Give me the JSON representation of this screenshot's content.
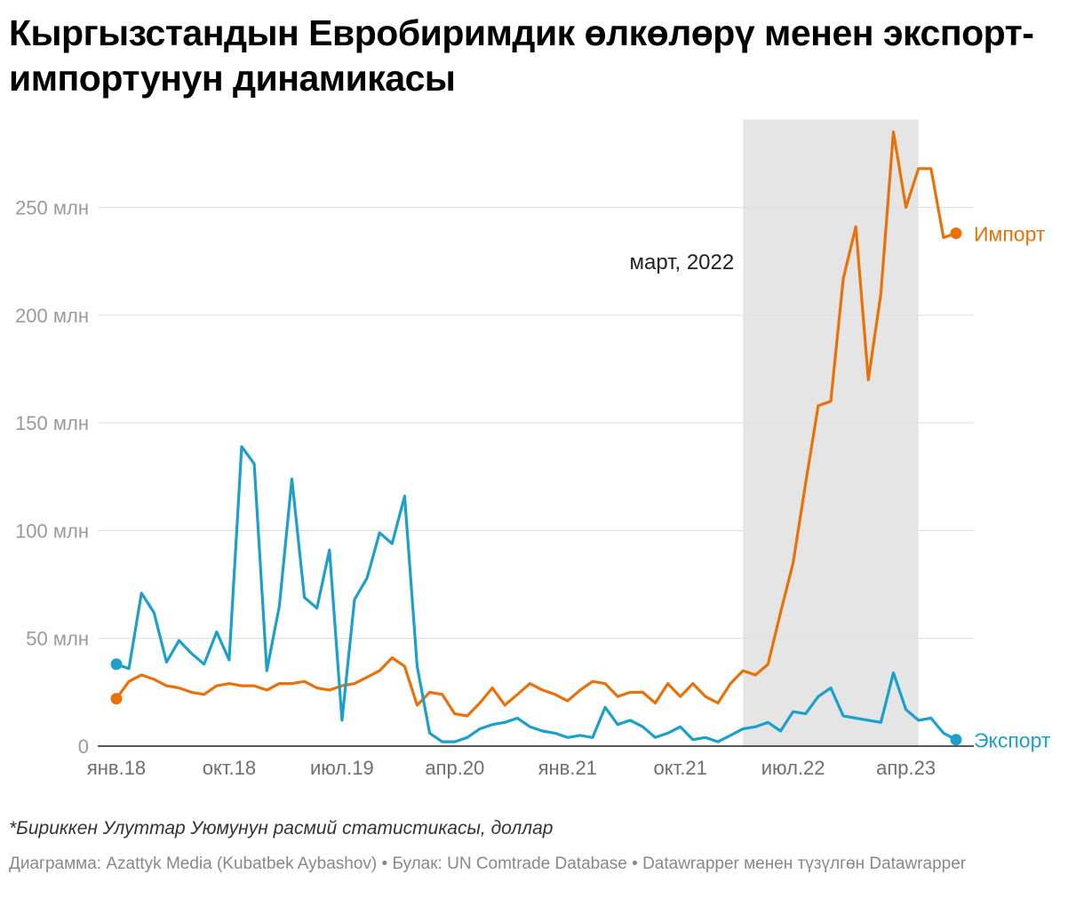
{
  "title": "Кыргызстандын Евробиримдик өлкөлөрү менен экспорт-импортунун динамикасы",
  "colors": {
    "import": "#e8710a",
    "export": "#1ba0c9",
    "shade": "#e5e5e5",
    "grid": "#e0e0e0"
  },
  "chart_data": {
    "type": "line",
    "x_start": "2018-01",
    "x_end": "2023-08",
    "x_ticks": [
      {
        "x": "2018-01",
        "label": "янв.18"
      },
      {
        "x": "2018-10",
        "label": "окт.18"
      },
      {
        "x": "2019-07",
        "label": "июл.19"
      },
      {
        "x": "2020-04",
        "label": "апр.20"
      },
      {
        "x": "2021-01",
        "label": "янв.21"
      },
      {
        "x": "2021-10",
        "label": "окт.21"
      },
      {
        "x": "2022-07",
        "label": "июл.22"
      },
      {
        "x": "2023-04",
        "label": "апр.23"
      }
    ],
    "y_ticks": [
      {
        "value": 0,
        "label": "0"
      },
      {
        "value": 50,
        "label": "50 млн"
      },
      {
        "value": 100,
        "label": "100 млн"
      },
      {
        "value": 150,
        "label": "150 млн"
      },
      {
        "value": 200,
        "label": "200 млн"
      },
      {
        "value": 250,
        "label": "250 млн"
      }
    ],
    "ylim": [
      0,
      290
    ],
    "highlight": {
      "from": "2022-03",
      "to": "2023-05",
      "label": "март, 2022"
    },
    "series": [
      {
        "name": "Импорт",
        "key": "import",
        "values": [
          22,
          30,
          33,
          31,
          28,
          27,
          25,
          24,
          28,
          29,
          28,
          28,
          26,
          29,
          29,
          30,
          27,
          26,
          28,
          29,
          32,
          35,
          41,
          37,
          19,
          25,
          24,
          15,
          14,
          20,
          27,
          19,
          24,
          29,
          26,
          24,
          21,
          26,
          30,
          29,
          23,
          25,
          25,
          20,
          29,
          23,
          29,
          23,
          20,
          29,
          35,
          33,
          38,
          62,
          85,
          122,
          158,
          160,
          217,
          241,
          170,
          210,
          285,
          250,
          268,
          268,
          236,
          238
        ]
      },
      {
        "name": "Экспорт",
        "key": "export",
        "values": [
          38,
          36,
          71,
          62,
          39,
          49,
          43,
          38,
          53,
          40,
          139,
          131,
          35,
          65,
          124,
          69,
          64,
          91,
          12,
          68,
          78,
          99,
          94,
          116,
          37,
          6,
          2,
          2,
          4,
          8,
          10,
          11,
          13,
          9,
          7,
          6,
          4,
          5,
          4,
          18,
          10,
          12,
          9,
          4,
          6,
          9,
          3,
          4,
          2,
          5,
          8,
          9,
          11,
          7,
          16,
          15,
          23,
          27,
          14,
          13,
          12,
          11,
          34,
          17,
          12,
          13,
          6,
          3
        ]
      }
    ]
  },
  "note": "*Бириккен Улуттар Уюмунун расмий статистикасы, доллар",
  "source": "Диаграмма: Azattyk Media (Kubatbek Aybashov) • Булак: UN Comtrade Database • Datawrapper менен түзүлгөн Datawrapper"
}
